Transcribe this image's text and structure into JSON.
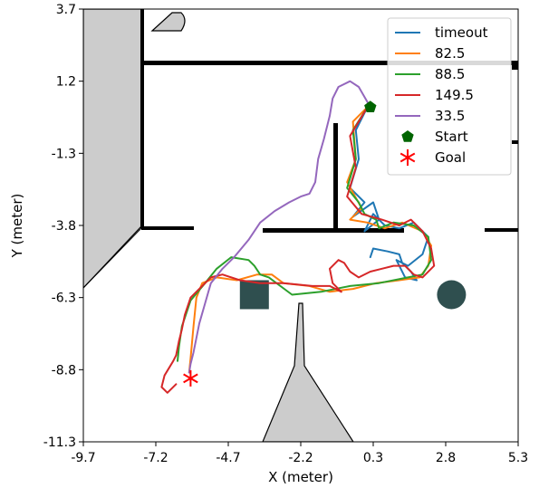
{
  "chart_data": {
    "type": "line",
    "title": "",
    "xlabel": "X (meter)",
    "ylabel": "Y (meter)",
    "xlim": [
      -9.7,
      5.3
    ],
    "ylim": [
      -11.3,
      3.7
    ],
    "xticks": [
      "-9.7",
      "-7.2",
      "-4.7",
      "-2.2",
      "0.3",
      "2.8",
      "5.3"
    ],
    "yticks": [
      "3.7",
      "1.2",
      "-1.3",
      "-3.8",
      "-6.3",
      "-8.8",
      "-11.3"
    ],
    "grid": false,
    "legend_position": "top-right",
    "series": [
      {
        "name": "timeout",
        "color": "#1f77b4",
        "x": [
          0.1,
          -0.3,
          -0.2,
          -0.5,
          0.0,
          -0.4,
          0.3,
          0.5,
          0.0,
          0.3,
          0.7,
          1.2,
          1.7,
          2.2,
          2.0,
          1.5,
          1.1,
          1.4,
          1.8,
          1.6,
          1.3,
          1.2,
          0.8,
          0.3,
          0.2
        ],
        "y": [
          0.3,
          -0.5,
          -1.5,
          -2.5,
          -3.0,
          -3.5,
          -3.0,
          -3.6,
          -4.0,
          -3.4,
          -3.8,
          -3.9,
          -3.7,
          -4.2,
          -4.8,
          -5.2,
          -5.0,
          -5.6,
          -5.7,
          -5.4,
          -5.1,
          -4.8,
          -4.7,
          -4.6,
          -4.9
        ]
      },
      {
        "name": "82.5",
        "color": "#ff7f0e",
        "x": [
          0.1,
          -0.4,
          -0.3,
          -0.6,
          -0.1,
          -0.5,
          0.1,
          0.7,
          1.3,
          2.0,
          2.3,
          2.2,
          1.9,
          1.2,
          0.4,
          -0.4,
          -1.2,
          -1.9,
          -2.8,
          -3.2,
          -3.7,
          -4.4,
          -5.1,
          -5.6,
          -5.8,
          -5.9,
          -6.0,
          -6.05
        ],
        "y": [
          0.3,
          -0.2,
          -1.5,
          -2.3,
          -3.2,
          -3.6,
          -3.7,
          -3.9,
          -3.7,
          -4.0,
          -4.5,
          -5.2,
          -5.6,
          -5.7,
          -5.8,
          -6.0,
          -6.1,
          -5.9,
          -5.8,
          -5.5,
          -5.5,
          -5.7,
          -5.6,
          -5.8,
          -6.3,
          -7.3,
          -8.4,
          -8.9
        ]
      },
      {
        "name": "88.5",
        "color": "#2ca02c",
        "x": [
          0.1,
          -0.4,
          -0.3,
          -0.6,
          -0.2,
          0.0,
          0.4,
          0.5,
          1.0,
          1.7,
          2.2,
          2.3,
          2.0,
          1.5,
          0.5,
          -0.5,
          -1.5,
          -2.5,
          -3.3,
          -3.6,
          -3.8,
          -4.0,
          -4.6,
          -5.1,
          -5.5,
          -6.0,
          -6.3,
          -6.4,
          -6.45
        ],
        "y": [
          0.3,
          -0.5,
          -1.5,
          -2.5,
          -3.0,
          -3.4,
          -3.6,
          -3.9,
          -3.7,
          -3.8,
          -4.2,
          -5.0,
          -5.5,
          -5.6,
          -5.8,
          -5.9,
          -6.1,
          -6.2,
          -5.6,
          -5.5,
          -5.2,
          -5.0,
          -4.9,
          -5.3,
          -5.8,
          -6.4,
          -7.3,
          -8.0,
          -8.5
        ]
      },
      {
        "name": "149.5",
        "color": "#d62728",
        "x": [
          0.1,
          -0.5,
          -0.3,
          -0.6,
          -0.1,
          0.6,
          1.2,
          1.6,
          2.0,
          2.3,
          2.4,
          2.0,
          1.7,
          1.4,
          1.0,
          0.6,
          0.2,
          -0.2,
          -0.5,
          -0.7,
          -0.9,
          -1.2,
          -1.1,
          -0.8,
          -1.2,
          -1.8,
          -2.8,
          -3.6,
          -4.3,
          -4.9,
          -5.3,
          -5.7,
          -6.0,
          -6.2,
          -6.3,
          -6.4,
          -6.5,
          -6.6,
          -6.9,
          -7.0,
          -6.8,
          -6.5
        ],
        "y": [
          0.3,
          -0.7,
          -1.8,
          -2.8,
          -3.4,
          -3.6,
          -3.8,
          -3.6,
          -4.0,
          -4.6,
          -5.2,
          -5.6,
          -5.5,
          -5.2,
          -5.2,
          -5.3,
          -5.4,
          -5.6,
          -5.4,
          -5.1,
          -5.0,
          -5.3,
          -5.8,
          -6.1,
          -5.9,
          -5.9,
          -5.8,
          -5.8,
          -5.7,
          -5.5,
          -5.6,
          -6.0,
          -6.3,
          -6.9,
          -7.4,
          -7.8,
          -8.3,
          -8.5,
          -9.0,
          -9.4,
          -9.6,
          -9.3
        ]
      },
      {
        "name": "33.5",
        "color": "#9467bd",
        "x": [
          0.2,
          -0.2,
          -0.5,
          -0.9,
          -1.1,
          -1.2,
          -1.4,
          -1.6,
          -1.7,
          -1.9,
          -2.2,
          -2.6,
          -3.1,
          -3.6,
          -4.0,
          -4.5,
          -4.9,
          -5.3,
          -5.5,
          -5.7,
          -5.8,
          -5.9,
          -6.0,
          -6.05
        ],
        "y": [
          0.3,
          1.0,
          1.2,
          1.0,
          0.6,
          0.0,
          -0.8,
          -1.5,
          -2.3,
          -2.7,
          -2.8,
          -3.0,
          -3.3,
          -3.7,
          -4.3,
          -4.9,
          -5.3,
          -5.8,
          -6.5,
          -7.2,
          -7.7,
          -8.2,
          -8.6,
          -8.9
        ]
      }
    ],
    "markers": [
      {
        "name": "Start",
        "shape": "pentagon",
        "color": "#006400",
        "x": 0.2,
        "y": 0.3
      },
      {
        "name": "Goal",
        "shape": "star",
        "color": "#ff0000",
        "x": -6.0,
        "y": -9.1
      }
    ],
    "obstacles": [
      {
        "shape": "square",
        "color": "#2f4f4f",
        "x": -3.8,
        "y": -6.2,
        "size": 1.0
      },
      {
        "shape": "circle",
        "color": "#2f4f4f",
        "x": 3.0,
        "y": -6.2,
        "size": 1.0
      }
    ]
  },
  "map_colors": {
    "wall": "#000000",
    "unknown_area": "#cccccc",
    "free_space": "#ffffff"
  }
}
